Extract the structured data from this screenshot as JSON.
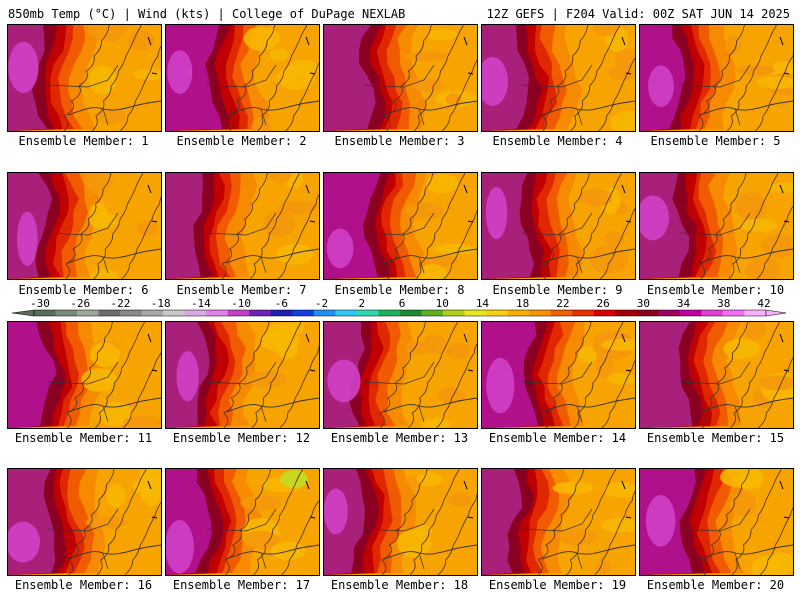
{
  "header": {
    "left": "850mb Temp (°C) | Wind (kts) | College of DuPage NEXLAB",
    "right": "12Z GEFS | F204 Valid: 00Z SAT JUN 14 2025"
  },
  "members": [
    "Ensemble Member: 1",
    "Ensemble Member: 2",
    "Ensemble Member: 3",
    "Ensemble Member: 4",
    "Ensemble Member: 5",
    "Ensemble Member: 6",
    "Ensemble Member: 7",
    "Ensemble Member: 8",
    "Ensemble Member: 9",
    "Ensemble Member: 10",
    "Ensemble Member: 11",
    "Ensemble Member: 12",
    "Ensemble Member: 13",
    "Ensemble Member: 14",
    "Ensemble Member: 15",
    "Ensemble Member: 16",
    "Ensemble Member: 17",
    "Ensemble Member: 18",
    "Ensemble Member: 19",
    "Ensemble Member: 20"
  ],
  "colorbar": {
    "ticks": [
      "-30",
      "-26",
      "-22",
      "-18",
      "-14",
      "-10",
      "-6",
      "-2",
      "2",
      "6",
      "10",
      "14",
      "18",
      "22",
      "26",
      "30",
      "34",
      "38",
      "42"
    ],
    "colors": [
      "#596e59",
      "#7a8a7a",
      "#9aa89a",
      "#6e6e6e",
      "#8a8a8a",
      "#a8a8a8",
      "#c8c8c8",
      "#d8a8e0",
      "#e080e8",
      "#c040c8",
      "#7020b8",
      "#2020b0",
      "#1040e0",
      "#2090f0",
      "#30c8f0",
      "#30d8b0",
      "#20b060",
      "#208830",
      "#60b020",
      "#b0d020",
      "#e8e820",
      "#f8d010",
      "#f8b000",
      "#f89000",
      "#f06000",
      "#e83000",
      "#d80000",
      "#a80000",
      "#880020",
      "#a00060",
      "#c000a0",
      "#e040d0",
      "#f070f0",
      "#f8b0f8"
    ]
  }
}
